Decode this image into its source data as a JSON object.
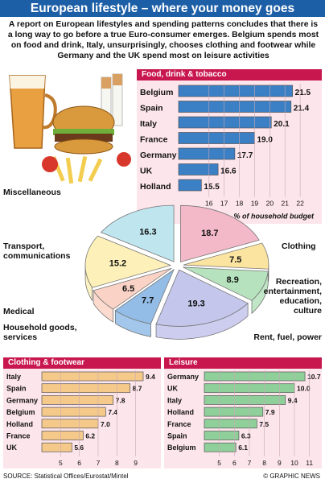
{
  "title": "European lifestyle – where your money goes",
  "intro": "A report on European lifestyles and spending patterns concludes that there is a long way to go before a true Euro-consumer emerges. Belgium spends most on food and drink, Italy, unsurprisingly, chooses clothing and footwear while Germany and the UK spend most on leisure activities",
  "source": "SOURCE: Statistical Offices/Eurostat/Mintel",
  "brand": "© GRAPHIC NEWS",
  "colors": {
    "title_bg": "#1d5fa6",
    "panel_head": "#c8174f",
    "panel_bg": "#fde5ec",
    "bar_blue": "#3b7fc4",
    "bar_orange": "#f5c98a",
    "bar_green": "#8fcf9a"
  },
  "chart_data": [
    {
      "type": "bar",
      "title": "Food, drink & tobacco",
      "categories": [
        "Belgium",
        "Spain",
        "Italy",
        "France",
        "Germany",
        "UK",
        "Holland"
      ],
      "values": [
        21.5,
        21.4,
        20.1,
        19.0,
        17.7,
        16.6,
        15.5
      ],
      "value_labels": [
        "21.5",
        "21.4",
        "20.1",
        "19.0",
        "17.7",
        "16.6",
        "15.5"
      ],
      "xlim": [
        14,
        23
      ],
      "ticks": [
        "16",
        "17",
        "18",
        "19",
        "20",
        "21",
        "22"
      ],
      "xlabel": "% of household budget"
    },
    {
      "type": "pie",
      "slices": [
        {
          "label": "Miscellaneous",
          "value": 18.7,
          "text": "18.7",
          "color": "#f3b9c9"
        },
        {
          "label": "Clothing",
          "value": 7.5,
          "text": "7.5",
          "color": "#fbe3a0"
        },
        {
          "label": "Recreation, entertainment, education, culture",
          "value": 8.9,
          "text": "8.9",
          "color": "#b6e2bd"
        },
        {
          "label": "Rent, fuel, power",
          "value": 19.3,
          "text": "19.3",
          "color": "#c4c6ec"
        },
        {
          "label": "Household goods, services",
          "value": 7.7,
          "text": "7.7",
          "color": "#93bde6"
        },
        {
          "label": "Medical",
          "value": 6.5,
          "text": "6.5",
          "color": "#fbd3c6"
        },
        {
          "label": "Transport, communications",
          "value": 15.2,
          "text": "15.2",
          "color": "#fdf0b8"
        },
        {
          "label": "",
          "value": 16.3,
          "text": "16.3",
          "color": "#bfe5ef"
        }
      ]
    },
    {
      "type": "bar",
      "title": "Clothing & footwear",
      "categories": [
        "Italy",
        "Spain",
        "Germany",
        "Belgium",
        "Holland",
        "France",
        "UK"
      ],
      "values": [
        9.4,
        8.7,
        7.8,
        7.4,
        7.0,
        6.2,
        5.6
      ],
      "value_labels": [
        "9.4",
        "8.7",
        "7.8",
        "7.4",
        "7.0",
        "6.2",
        "5.6"
      ],
      "xlim": [
        4,
        10
      ],
      "ticks": [
        "5",
        "6",
        "7",
        "8",
        "9"
      ]
    },
    {
      "type": "bar",
      "title": "Leisure",
      "categories": [
        "Germany",
        "UK",
        "Italy",
        "Holland",
        "France",
        "Spain",
        "Belgium"
      ],
      "values": [
        10.7,
        10.0,
        9.4,
        7.9,
        7.5,
        6.3,
        6.1
      ],
      "value_labels": [
        "10.7",
        "10.0",
        "9.4",
        "7.9",
        "7.5",
        "6.3",
        "6.1"
      ],
      "xlim": [
        4,
        11.5
      ],
      "ticks": [
        "5",
        "6",
        "7",
        "8",
        "9",
        "10",
        "11"
      ]
    }
  ]
}
